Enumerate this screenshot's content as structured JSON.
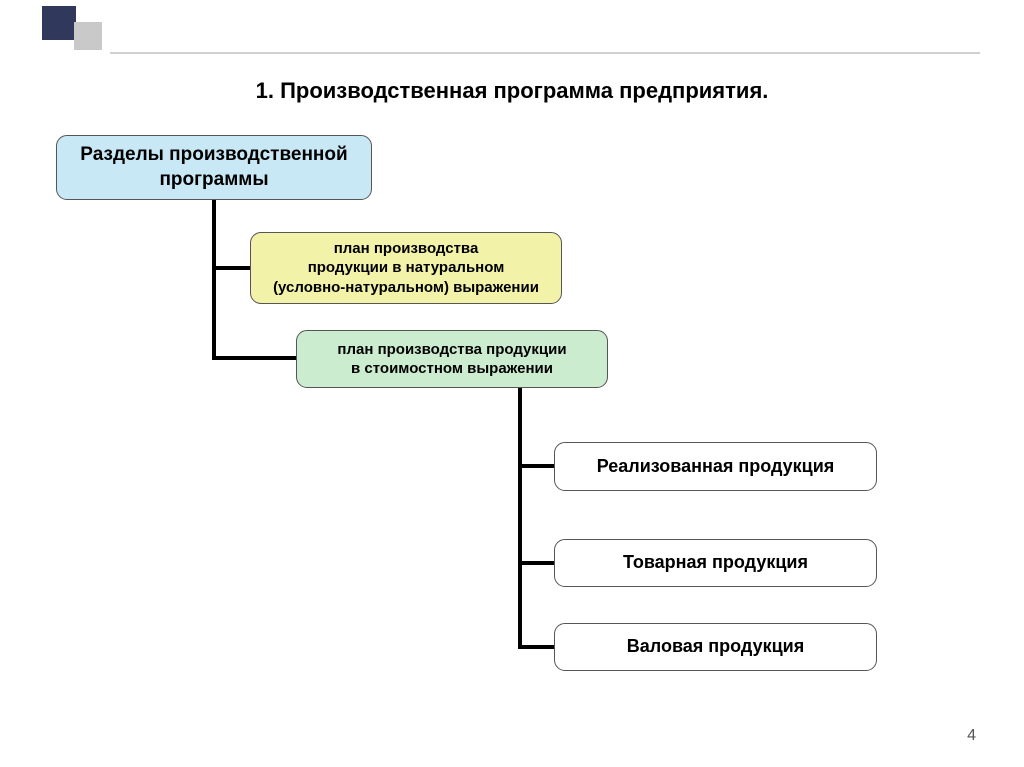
{
  "title": "1. Производственная программа предприятия.",
  "pageNumber": "4",
  "nodes": {
    "root": {
      "line1": "Разделы производственной",
      "line2": "программы",
      "bg": "#c9e8f5"
    },
    "yellow": {
      "line1": "план производства",
      "line2": "продукции в натуральном",
      "line3": "(условно-натуральном) выражении",
      "bg": "#f3f2a9"
    },
    "green": {
      "line1": "план производства продукции",
      "line2": "в стоимостном выражении",
      "bg": "#cbeccf"
    },
    "white1": {
      "text": "Реализованная продукция",
      "bg": "#ffffff"
    },
    "white2": {
      "text": "Товарная продукция",
      "bg": "#ffffff"
    },
    "white3": {
      "text": "Валовая продукция",
      "bg": "#ffffff"
    }
  },
  "connectors": {
    "stroke": "#000000",
    "width": 4,
    "paths": [
      "M 214 200 L 214 268 L 250 268",
      "M 214 268 L 214 358 L 296 358",
      "M 520 388 L 520 466 L 554 466",
      "M 520 466 L 520 563 L 554 563",
      "M 520 563 L 520 647 L 554 647"
    ]
  },
  "decor": {
    "sq1_color": "#30385c",
    "sq2_color": "#c9c9c9",
    "line_color": "#d0d0d0"
  }
}
